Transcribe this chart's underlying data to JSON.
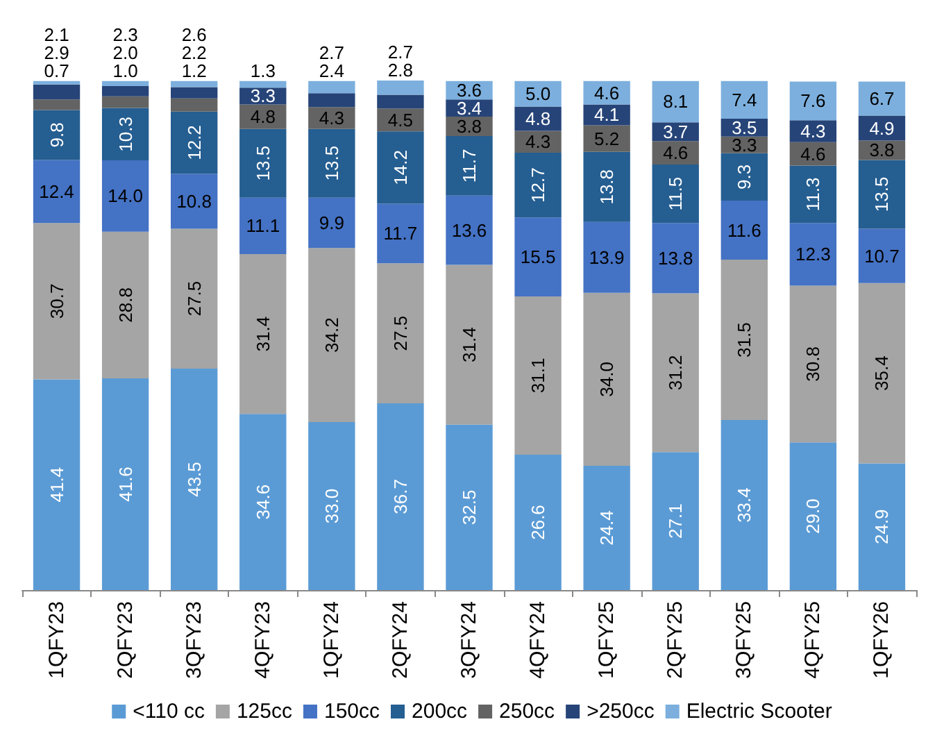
{
  "chart_data": {
    "type": "bar",
    "stacked": true,
    "data_labels": true,
    "legend": "bottom",
    "categories": [
      "1QFY23",
      "2QFY23",
      "3QFY23",
      "4QFY23",
      "1QFY24",
      "2QFY24",
      "3QFY24",
      "4QFY24",
      "1QFY25",
      "2QFY25",
      "3QFY25",
      "4QFY25",
      "1QFY26"
    ],
    "series": [
      {
        "name": "<110 cc",
        "color": "#5b9bd5",
        "values": [
          41.4,
          41.6,
          43.5,
          34.6,
          33.0,
          36.7,
          32.5,
          26.6,
          24.4,
          27.1,
          33.4,
          29.0,
          24.9
        ],
        "value_labels": [
          "41.4",
          "41.6",
          "43.5",
          "34.6",
          "33.0",
          "36.7",
          "32.5",
          "26.6",
          "24.4",
          "27.1",
          "33.4",
          "29.0",
          "24.9"
        ]
      },
      {
        "name": "125cc",
        "color": "#a5a5a5",
        "values": [
          30.7,
          28.8,
          27.5,
          31.4,
          34.2,
          27.5,
          31.4,
          31.1,
          34.0,
          31.2,
          31.5,
          30.8,
          35.4
        ],
        "value_labels": [
          "30.7",
          "28.8",
          "27.5",
          "31.4",
          "34.2",
          "27.5",
          "31.4",
          "31.1",
          "34.0",
          "31.2",
          "31.5",
          "30.8",
          "35.4"
        ]
      },
      {
        "name": "150cc",
        "color": "#4472c4",
        "values": [
          12.4,
          14.0,
          10.8,
          11.1,
          9.9,
          11.7,
          13.6,
          15.5,
          13.9,
          13.8,
          11.6,
          12.3,
          10.7
        ],
        "value_labels": [
          "12.4",
          "14.0",
          "10.8",
          "11.1",
          "9.9",
          "11.7",
          "13.6",
          "15.5",
          "13.9",
          "13.8",
          "11.6",
          "12.3",
          "10.7"
        ]
      },
      {
        "name": "200cc",
        "color": "#255e91",
        "values": [
          9.8,
          10.3,
          12.2,
          13.5,
          13.5,
          14.2,
          11.7,
          12.7,
          13.8,
          11.5,
          9.3,
          11.3,
          13.5
        ],
        "value_labels": [
          "9.8",
          "10.3",
          "12.2",
          "13.5",
          "13.5",
          "14.2",
          "11.7",
          "12.7",
          "13.8",
          "11.5",
          "9.3",
          "11.3",
          "13.5"
        ]
      },
      {
        "name": "250cc",
        "color": "#636363",
        "values": [
          2.1,
          2.3,
          2.6,
          4.8,
          4.3,
          4.5,
          3.8,
          4.3,
          5.2,
          4.6,
          3.3,
          4.6,
          3.8
        ],
        "value_labels": [
          "2.1",
          "2.3",
          "2.6",
          "4.8",
          "4.3",
          "4.5",
          "3.8",
          "4.3",
          "5.2",
          "4.6",
          "3.3",
          "4.6",
          "3.8"
        ]
      },
      {
        "name": ">250cc",
        "color": "#264478",
        "values": [
          2.9,
          2.0,
          2.2,
          3.3,
          2.7,
          2.7,
          3.4,
          4.8,
          4.1,
          3.7,
          3.5,
          4.3,
          4.9
        ],
        "value_labels": [
          "2.9",
          "2.0",
          "2.2",
          "3.3",
          "2.7",
          "2.7",
          "3.4",
          "4.8",
          "4.1",
          "3.7",
          "3.5",
          "4.3",
          "4.9"
        ]
      },
      {
        "name": "Electric Scooter",
        "color": "#7cafdd",
        "values": [
          0.7,
          1.0,
          1.2,
          1.3,
          2.4,
          2.8,
          3.6,
          5.0,
          4.6,
          8.1,
          7.4,
          7.6,
          6.7
        ],
        "value_labels": [
          "0.7",
          "1.0",
          "1.2",
          "1.3",
          "2.4",
          "2.8",
          "3.6",
          "5.0",
          "4.6",
          "8.1",
          "7.4",
          "7.6",
          "6.7"
        ]
      }
    ]
  }
}
